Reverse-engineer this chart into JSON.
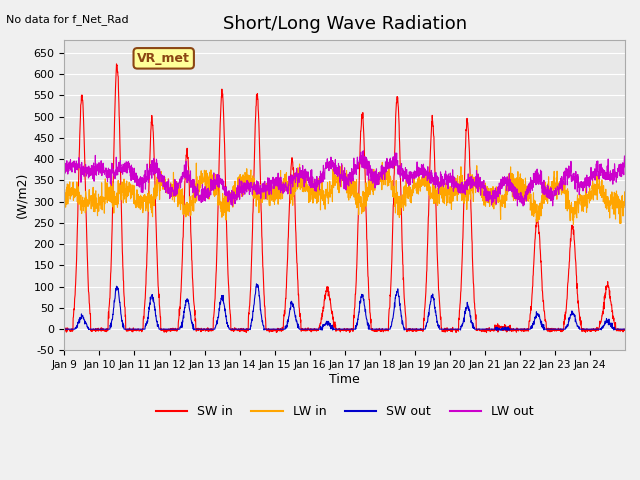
{
  "title": "Short/Long Wave Radiation",
  "xlabel": "Time",
  "ylabel": "(W/m2)",
  "top_left_text": "No data for f_Net_Rad",
  "box_label": "VR_met",
  "ylim": [
    -50,
    680
  ],
  "yticks": [
    -50,
    0,
    50,
    100,
    150,
    200,
    250,
    300,
    350,
    400,
    450,
    500,
    550,
    600,
    650
  ],
  "xtick_labels": [
    "Jan 9",
    "Jan 10",
    "Jan 11",
    "Jan 12",
    "Jan 13",
    "Jan 14",
    "Jan 15",
    "Jan 16",
    "Jan 17",
    "Jan 18",
    "Jan 19",
    "Jan 20",
    "Jan 21",
    "Jan 22",
    "Jan 23",
    "Jan 24"
  ],
  "colors": {
    "SW_in": "#FF0000",
    "LW_in": "#FFA500",
    "SW_out": "#0000CC",
    "LW_out": "#CC00CC"
  },
  "background_color": "#E8E8E8",
  "plot_bg_color": "#E8E8E8",
  "legend_labels": [
    "SW in",
    "LW in",
    "SW out",
    "LW out"
  ],
  "n_days": 16,
  "samples_per_day": 144
}
